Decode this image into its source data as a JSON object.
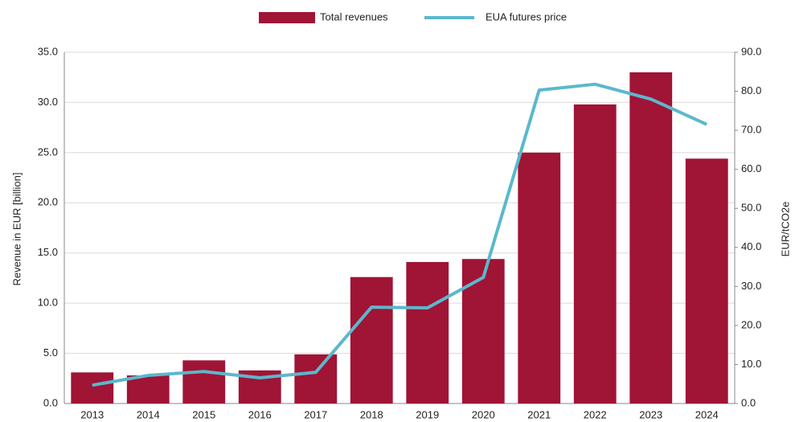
{
  "chart_data": {
    "type": "bar_line",
    "categories": [
      "2013",
      "2014",
      "2015",
      "2016",
      "2017",
      "2018",
      "2019",
      "2020",
      "2021",
      "2022",
      "2023",
      "2024"
    ],
    "series": [
      {
        "name": "Total revenues",
        "type": "bar",
        "color": "#a01435",
        "values": [
          3.1,
          2.8,
          4.3,
          3.3,
          4.9,
          12.6,
          14.1,
          14.4,
          25.0,
          29.8,
          33.0,
          24.4
        ]
      },
      {
        "name": "EUA futures price",
        "type": "line",
        "axis": "y2",
        "color": "#5bb8cc",
        "values": [
          4.7,
          7.2,
          8.2,
          6.6,
          8.0,
          24.7,
          24.5,
          32.3,
          80.3,
          81.8,
          78.0,
          71.5
        ]
      }
    ],
    "ylabel": "Revenue in EUR [billion]",
    "y2label": "EUR/tCO2e",
    "ylim": [
      0,
      35
    ],
    "yticks": [
      {
        "value": 0,
        "label": "0.0"
      },
      {
        "value": 5,
        "label": "5.0"
      },
      {
        "value": 10,
        "label": "10.0"
      },
      {
        "value": 15,
        "label": "15.0"
      },
      {
        "value": 20,
        "label": "20.0"
      },
      {
        "value": 25,
        "label": "25.0"
      },
      {
        "value": 30,
        "label": "30.0"
      },
      {
        "value": 35,
        "label": "35.0"
      }
    ],
    "y2lim": [
      0,
      90
    ],
    "y2ticks": [
      {
        "value": 0,
        "label": "0.0"
      },
      {
        "value": 10,
        "label": "10.0"
      },
      {
        "value": 20,
        "label": "20.0"
      },
      {
        "value": 30,
        "label": "30.0"
      },
      {
        "value": 40,
        "label": "40.0"
      },
      {
        "value": 50,
        "label": "50.0"
      },
      {
        "value": 60,
        "label": "60.0"
      },
      {
        "value": 70,
        "label": "70.0"
      },
      {
        "value": 80,
        "label": "80.0"
      },
      {
        "value": 90,
        "label": "90.0"
      }
    ],
    "grid": true,
    "legend": "top"
  }
}
